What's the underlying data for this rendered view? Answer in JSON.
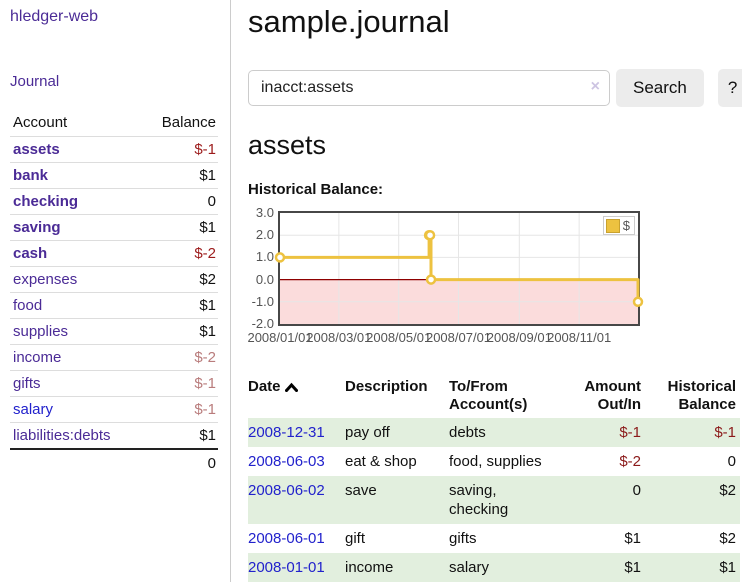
{
  "colors": {
    "link_purple": "#4b2b96",
    "link_blue": "#2222cc",
    "negative_red_bold": "#9c1b1b",
    "negative_red_muted": "#b97c7c",
    "table_negative_red": "#8b1a1a",
    "row_stripe_green": "#e2efde",
    "chart_line_gold": "#edc240",
    "chart_negative_region": "#fbdcdc",
    "chart_zero_line": "#8e0000"
  },
  "sidebar": {
    "app_title": "hledger-web",
    "journal_link": "Journal",
    "accounts_table": {
      "headers": [
        "Account",
        "Balance"
      ],
      "rows": [
        {
          "name": "assets",
          "depth": 1,
          "balance": "$-1",
          "bold": true,
          "negative": true
        },
        {
          "name": "bank",
          "depth": 2,
          "balance": "$1",
          "bold": true
        },
        {
          "name": "checking",
          "depth": 3,
          "balance": "0",
          "bold": true
        },
        {
          "name": "saving",
          "depth": 3,
          "balance": "$1",
          "bold": true
        },
        {
          "name": "cash",
          "depth": 2,
          "balance": "$-2",
          "bold": true,
          "negative": true
        },
        {
          "name": "expenses",
          "depth": 1,
          "balance": "$2"
        },
        {
          "name": "food",
          "depth": 2,
          "balance": "$1"
        },
        {
          "name": "supplies",
          "depth": 2,
          "balance": "$1"
        },
        {
          "name": "income",
          "depth": 1,
          "balance": "$-2",
          "negative_muted": true
        },
        {
          "name": "gifts",
          "depth": 2,
          "balance": "$-1",
          "negative_muted": true
        },
        {
          "name": "salary",
          "depth": 2,
          "balance": "$-1",
          "negative_muted": true,
          "link_color": "blue"
        },
        {
          "name": "liabilities:debts",
          "depth": 1,
          "balance": "$1"
        }
      ],
      "total": "0"
    }
  },
  "main": {
    "title": "sample.journal",
    "search": {
      "value": "inacct:assets",
      "clear_icon": "×",
      "button_label": "Search",
      "help_label": "?"
    },
    "account_heading": "assets",
    "register_table": {
      "headers": [
        "Date",
        "Description",
        "To/From Account(s)",
        "Amount Out/In",
        "Historical Balance"
      ],
      "rows": [
        {
          "date": "2008-12-31",
          "description": "pay off",
          "accounts": "debts",
          "amount": "$-1",
          "balance": "$-1",
          "amount_negative": true,
          "balance_negative": true
        },
        {
          "date": "2008-06-03",
          "description": "eat & shop",
          "accounts": "food, supplies",
          "amount": "$-2",
          "balance": "0",
          "amount_negative": true
        },
        {
          "date": "2008-06-02",
          "description": "save",
          "accounts": "saving, checking",
          "amount": "0",
          "balance": "$2"
        },
        {
          "date": "2008-06-01",
          "description": "gift",
          "accounts": "gifts",
          "amount": "$1",
          "balance": "$2"
        },
        {
          "date": "2008-01-01",
          "description": "income",
          "accounts": "salary",
          "amount": "$1",
          "balance": "$1"
        }
      ]
    }
  },
  "chart_data": {
    "type": "line",
    "title": "Historical Balance:",
    "series": [
      {
        "name": "$",
        "color": "#edc240",
        "step": true,
        "points": [
          [
            "2008-01-01",
            1
          ],
          [
            "2008-06-01",
            2
          ],
          [
            "2008-06-02",
            2
          ],
          [
            "2008-06-03",
            0
          ],
          [
            "2008-12-31",
            -1
          ]
        ]
      }
    ],
    "x_range": [
      "2008-01-01",
      "2008-12-31"
    ],
    "x_ticks": [
      "2008/01/01",
      "2008/03/01",
      "2008/05/01",
      "2008/07/01",
      "2008/09/01",
      "2008/11/01"
    ],
    "y_ticks": [
      3.0,
      2.0,
      1.0,
      0.0,
      -1.0,
      -2.0
    ],
    "ylim": [
      -2,
      3
    ],
    "grid": true,
    "negative_region_color": "#fbdcdc",
    "zero_line_color": "#8e0000",
    "legend": {
      "position": "top-right"
    }
  }
}
